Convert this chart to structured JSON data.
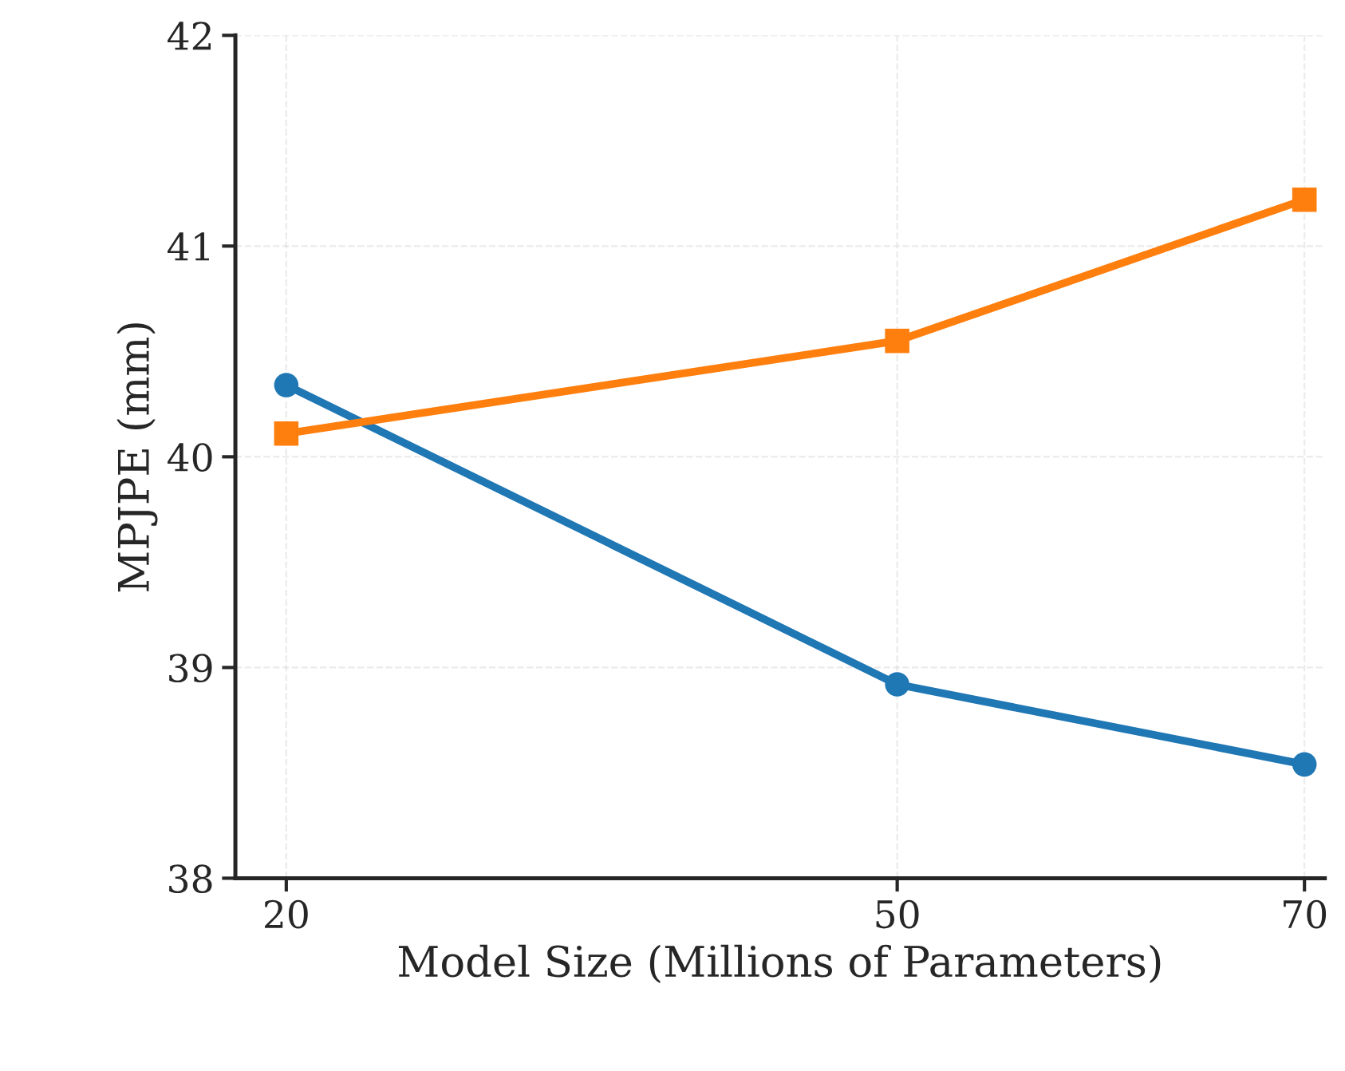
{
  "chart_data": {
    "type": "line",
    "xlabel": "Model Size (Millions of Parameters)",
    "ylabel": "MPJPE (mm)",
    "x": [
      20,
      50,
      70
    ],
    "series": [
      {
        "color": "#1f77b4",
        "marker": "circle",
        "values": [
          40.34,
          38.92,
          38.54
        ]
      },
      {
        "color": "#ff7f0e",
        "marker": "square",
        "values": [
          40.11,
          40.55,
          41.22
        ]
      }
    ],
    "xlim": [
      17.5,
      71
    ],
    "xticks": [
      20,
      50,
      70
    ],
    "ylim": [
      38,
      42
    ],
    "yticks": [
      38,
      39,
      40,
      41,
      42
    ],
    "grid": true,
    "line_style": "solid"
  }
}
